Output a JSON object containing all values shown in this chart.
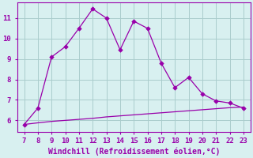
{
  "x": [
    7,
    8,
    9,
    10,
    11,
    12,
    13,
    14,
    15,
    16,
    17,
    18,
    19,
    20,
    21,
    22,
    23
  ],
  "y_main": [
    5.8,
    6.6,
    9.1,
    9.6,
    10.5,
    11.45,
    11.0,
    9.45,
    10.85,
    10.5,
    8.8,
    7.6,
    8.1,
    7.3,
    6.95,
    6.85,
    6.6
  ],
  "y_line2": [
    5.8,
    5.88,
    5.95,
    6.0,
    6.05,
    6.1,
    6.17,
    6.22,
    6.27,
    6.32,
    6.37,
    6.42,
    6.47,
    6.52,
    6.57,
    6.62,
    6.65
  ],
  "line_color": "#9900aa",
  "bg_color": "#d8f0f0",
  "grid_color": "#aacccc",
  "spine_color": "#9900aa",
  "xlabel": "Windchill (Refroidissement éolien,°C)",
  "xlim_min": 6.5,
  "xlim_max": 23.5,
  "ylim_min": 5.45,
  "ylim_max": 11.75,
  "yticks": [
    6,
    7,
    8,
    9,
    10,
    11
  ],
  "xticks": [
    7,
    8,
    9,
    10,
    11,
    12,
    13,
    14,
    15,
    16,
    17,
    18,
    19,
    20,
    21,
    22,
    23
  ],
  "tick_labelsize": 6.5,
  "xlabel_fontsize": 7.0
}
